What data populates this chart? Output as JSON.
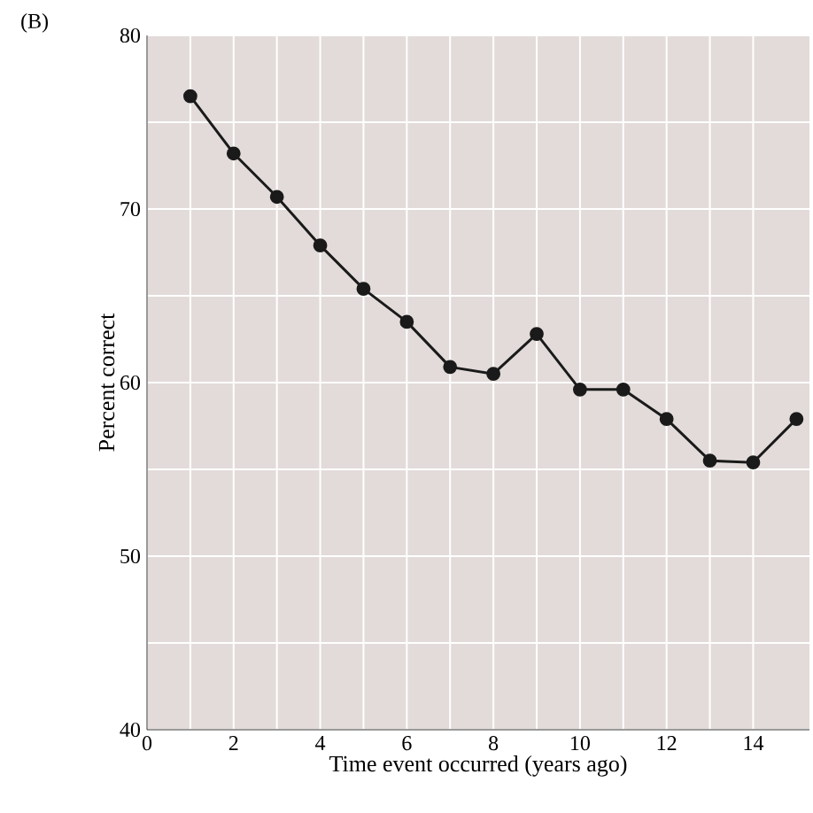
{
  "chart_data": {
    "type": "line",
    "xlabel": "Time event occurred (years ago)",
    "ylabel": "Percent correct",
    "annotations": [
      "(B)"
    ],
    "x": [
      1,
      2,
      3,
      4,
      5,
      6,
      7,
      8,
      9,
      10,
      11,
      12,
      13,
      14,
      15
    ],
    "series": [
      {
        "color": "#1a1a1a",
        "values": [
          76.5,
          73.2,
          70.7,
          67.9,
          65.4,
          63.5,
          60.9,
          60.5,
          62.8,
          59.6,
          59.6,
          57.9,
          55.5,
          55.4,
          57.9
        ]
      }
    ],
    "xlim": [
      0,
      15.3
    ],
    "ylim": [
      40,
      80
    ],
    "xticks": [
      0,
      2,
      4,
      6,
      8,
      10,
      12,
      14
    ],
    "yticks": [
      40,
      50,
      60,
      70,
      80
    ],
    "grid": true,
    "marker": "circle",
    "line_style": "solid"
  }
}
